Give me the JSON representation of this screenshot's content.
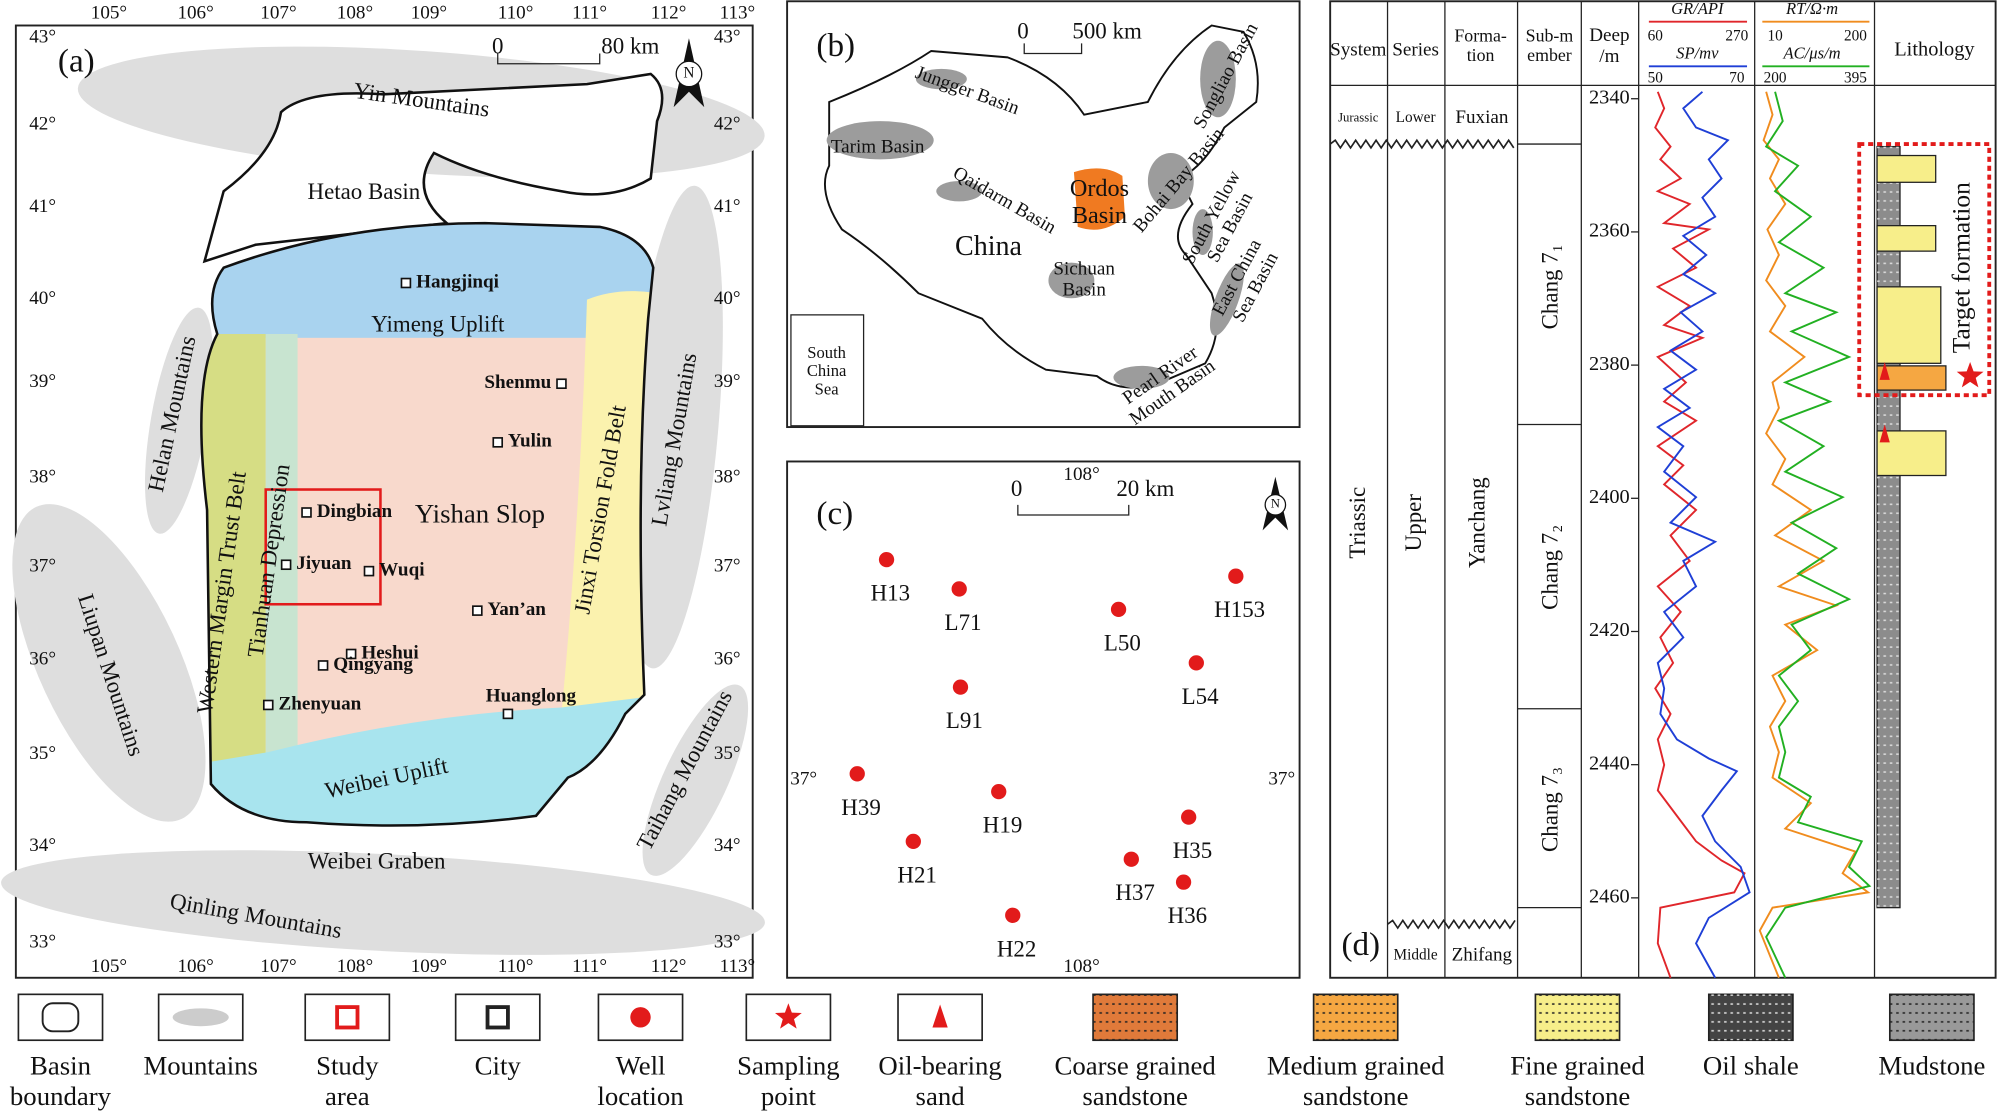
{
  "panel_a": {
    "label": "(a)",
    "scale_start": "0",
    "scale_end": "80 km",
    "north": "N",
    "longitudes": [
      "105°",
      "106°",
      "107°",
      "108°",
      "109°",
      "110°",
      "111°",
      "112°",
      "113°"
    ],
    "latitudes": [
      "43°",
      "42°",
      "41°",
      "40°",
      "39°",
      "38°",
      "37°",
      "36°",
      "35°",
      "34°",
      "33°"
    ],
    "regions": [
      "Yin Mountains",
      "Hetao Basin",
      "Yimeng Uplift",
      "Helan Mountains",
      "Lvliang Mountains",
      "Western Margin Trust Belt",
      "Tianhuan Depression",
      "Yishan Slop",
      "Jinxi Torsion Fold Belt",
      "Liupan Mountains",
      "Weibei Uplift",
      "Taihang Mountains",
      "Weibei Graben",
      "Qinling Mountains"
    ],
    "cities": [
      "Hangjinqi",
      "Shenmu",
      "Yulin",
      "Dingbian",
      "Jiyuan",
      "Wuqi",
      "Yan’an",
      "Heshui",
      "Qingyang",
      "Huanglong",
      "Zhenyuan"
    ]
  },
  "panel_b": {
    "label": "(b)",
    "scale_start": "0",
    "scale_end": "500 km",
    "country": "China",
    "basins": [
      [
        "Jungger Basin"
      ],
      [
        "Tarim Basin"
      ],
      [
        "Qaidarm Basin"
      ],
      [
        "Ordos",
        "Basin"
      ],
      [
        "Songliao Basin"
      ],
      [
        "Bohai Bay Basin"
      ],
      [
        "South Yellow",
        "Sea Basin"
      ],
      [
        "East China",
        "Sea Basin"
      ],
      [
        "Sichuan",
        "Basin"
      ],
      [
        "Pearl River",
        "Mouth Basin"
      ],
      [
        "South",
        "China",
        "Sea"
      ]
    ]
  },
  "panel_c": {
    "label": "(c)",
    "scale_start": "0",
    "scale_end": "20 km",
    "north": "N",
    "longitude": "108°",
    "latitude": "37°",
    "wells": [
      "H13",
      "L71",
      "L50",
      "H153",
      "L54",
      "L91",
      "H39",
      "H19",
      "H35",
      "H21",
      "H37",
      "H36",
      "H22"
    ]
  },
  "panel_d": {
    "label": "(d)",
    "headers": {
      "system": "System",
      "series": "Series",
      "formation": [
        "Forma-",
        "tion"
      ],
      "submember": [
        "Sub-m",
        "ember"
      ],
      "depth": [
        "Deep",
        "/m"
      ],
      "lithology": "Lithology"
    },
    "logs": [
      {
        "name": "GR/API",
        "min": 60,
        "max": 270
      },
      {
        "name": "SP/mv",
        "min": 50,
        "max": 70
      },
      {
        "name": "RT/Ω·m",
        "min": 10,
        "max": 200
      },
      {
        "name": "AC/μs/m",
        "min": 200,
        "max": 395
      }
    ],
    "depth_lim": [
      2338,
      2472
    ],
    "depth_ticks": [
      2340,
      2360,
      2380,
      2400,
      2420,
      2440,
      2460
    ],
    "cells": {
      "jurassic": "Jurassic",
      "lower": "Lower",
      "fuxian": "Fuxian",
      "triassic": "Triassic",
      "upper": "Upper",
      "yanchang": "Yanchang",
      "middle": "Middle",
      "zhifang": "Zhifang",
      "chang71": "Chang 7₁",
      "chang72": "Chang 7₂",
      "chang73": "Chang 7₃"
    },
    "target": "Target formation"
  },
  "legend": [
    [
      "Basin",
      "boundary"
    ],
    [
      "Mountains"
    ],
    [
      "Study",
      "area"
    ],
    [
      "City"
    ],
    [
      "Well",
      "location"
    ],
    [
      "Sampling",
      "point"
    ],
    [
      "Oil-bearing",
      "sand"
    ],
    [
      "Coarse grained",
      "sandstone"
    ],
    [
      "Medium grained",
      "sandstone"
    ],
    [
      "Fine grained",
      "sandstone"
    ],
    [
      "Oil shale"
    ],
    [
      "Mudstone"
    ]
  ]
}
